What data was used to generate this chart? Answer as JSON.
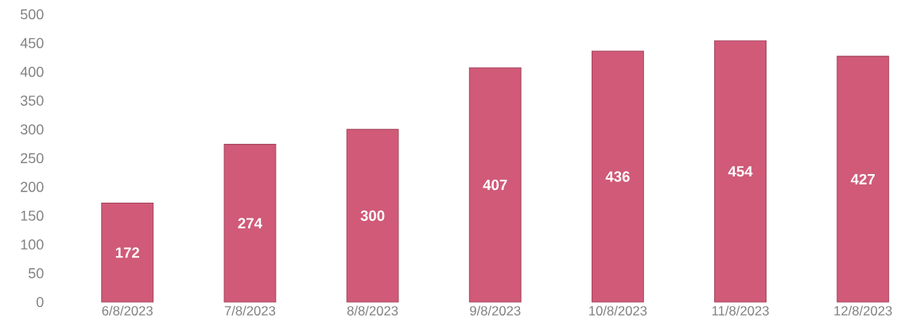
{
  "chart_data": {
    "type": "bar",
    "categories": [
      "6/8/2023",
      "7/8/2023",
      "8/8/2023",
      "9/8/2023",
      "10/8/2023",
      "11/8/2023",
      "12/8/2023"
    ],
    "values": [
      172,
      274,
      300,
      407,
      436,
      454,
      427
    ],
    "color": "#d05a78",
    "ylim": [
      0,
      500
    ],
    "yticks": [
      0,
      50,
      100,
      150,
      200,
      250,
      300,
      350,
      400,
      450,
      500
    ],
    "data_labels": true,
    "grid": false
  }
}
